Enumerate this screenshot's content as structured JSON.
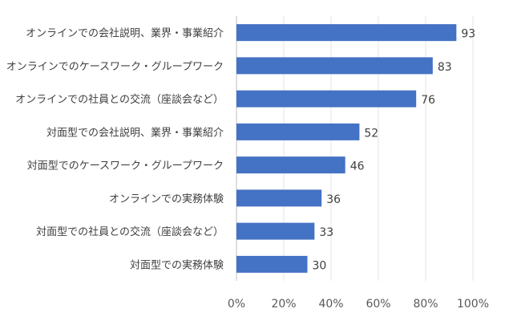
{
  "chart_data": {
    "type": "bar",
    "orientation": "horizontal",
    "title": "",
    "xlabel": "",
    "ylabel": "",
    "xlim": [
      0,
      100
    ],
    "x_ticks": [
      "0%",
      "20%",
      "40%",
      "60%",
      "80%",
      "100%"
    ],
    "grid": true,
    "bar_color": "#4472C4",
    "categories": [
      "オンラインでの会社説明、業界・事業紹介",
      "オンラインでのケースワーク・グループワーク",
      "オンラインでの社員との交流（座談会など）",
      "対面型での会社説明、業界・事業紹介",
      "対面型でのケースワーク・グループワーク",
      "オンラインでの実務体験",
      "対面型での社員との交流（座談会など）",
      "対面型での実務体験"
    ],
    "values": [
      93,
      83,
      76,
      52,
      46,
      36,
      33,
      30
    ]
  }
}
